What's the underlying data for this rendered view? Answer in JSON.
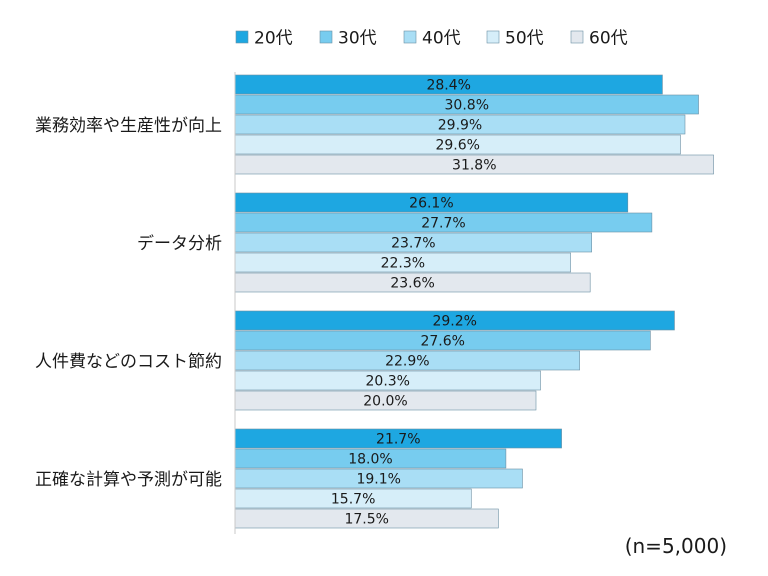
{
  "chart_data": {
    "type": "bar",
    "orientation": "horizontal",
    "title": "",
    "xlabel": "",
    "ylabel": "",
    "unit": "%",
    "xlim": [
      0,
      32
    ],
    "grid": false,
    "legend_position": "top",
    "categories": [
      "業務効率や生産性が向上",
      "データ分析",
      "人件費などのコスト節約",
      "正確な計算や予測が可能"
    ],
    "series": [
      {
        "name": "20代",
        "color": "#1ea7e1",
        "values": [
          28.4,
          26.1,
          29.2,
          21.7
        ]
      },
      {
        "name": "30代",
        "color": "#77ccef",
        "values": [
          30.8,
          27.7,
          27.6,
          18.0
        ]
      },
      {
        "name": "40代",
        "color": "#a9def5",
        "values": [
          29.9,
          23.7,
          22.9,
          19.1
        ]
      },
      {
        "name": "50代",
        "color": "#d6eef9",
        "values": [
          29.6,
          22.3,
          20.3,
          15.7
        ]
      },
      {
        "name": "60代",
        "color": "#e3e8ee",
        "values": [
          31.8,
          23.6,
          20.0,
          17.5
        ]
      }
    ],
    "data_labels": [
      [
        "28.4%",
        "26.1%",
        "29.2%",
        "21.7%"
      ],
      [
        "30.8%",
        "27.7%",
        "27.6%",
        "18.0%"
      ],
      [
        "29.9%",
        "23.7%",
        "22.9%",
        "19.1%"
      ],
      [
        "29.6%",
        "22.3%",
        "20.3%",
        "15.7%"
      ],
      [
        "31.8%",
        "23.6%",
        "20.0%",
        "17.5%"
      ]
    ],
    "note": "(n=5,000)"
  }
}
